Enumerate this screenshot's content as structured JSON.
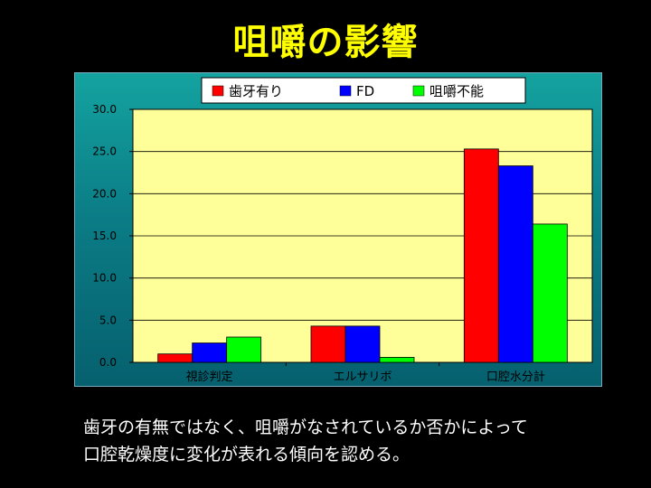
{
  "title": "咀嚼の影響",
  "caption": {
    "line1": "歯牙の有無ではなく、咀嚼がなされているか否かによって",
    "line2": "口腔乾燥度に変化が表れる傾向を認める。"
  },
  "colors": {
    "plot_bg": "#ffff99",
    "series": [
      "#ff0000",
      "#0000ff",
      "#00ff00"
    ]
  },
  "chart_data": {
    "type": "bar",
    "categories": [
      "視診判定",
      "エルサリボ",
      "口腔水分計"
    ],
    "series": [
      {
        "name": "歯牙有り",
        "values": [
          1.0,
          4.3,
          25.3
        ]
      },
      {
        "name": "FD",
        "values": [
          2.3,
          4.3,
          23.3
        ]
      },
      {
        "name": "咀嚼不能",
        "values": [
          3.0,
          0.6,
          16.4
        ]
      }
    ],
    "yticks": [
      "0.0",
      "5.0",
      "10.0",
      "15.0",
      "20.0",
      "25.0",
      "30.0"
    ],
    "ylim": [
      0,
      30
    ],
    "grid": true,
    "legend": "top-center"
  }
}
